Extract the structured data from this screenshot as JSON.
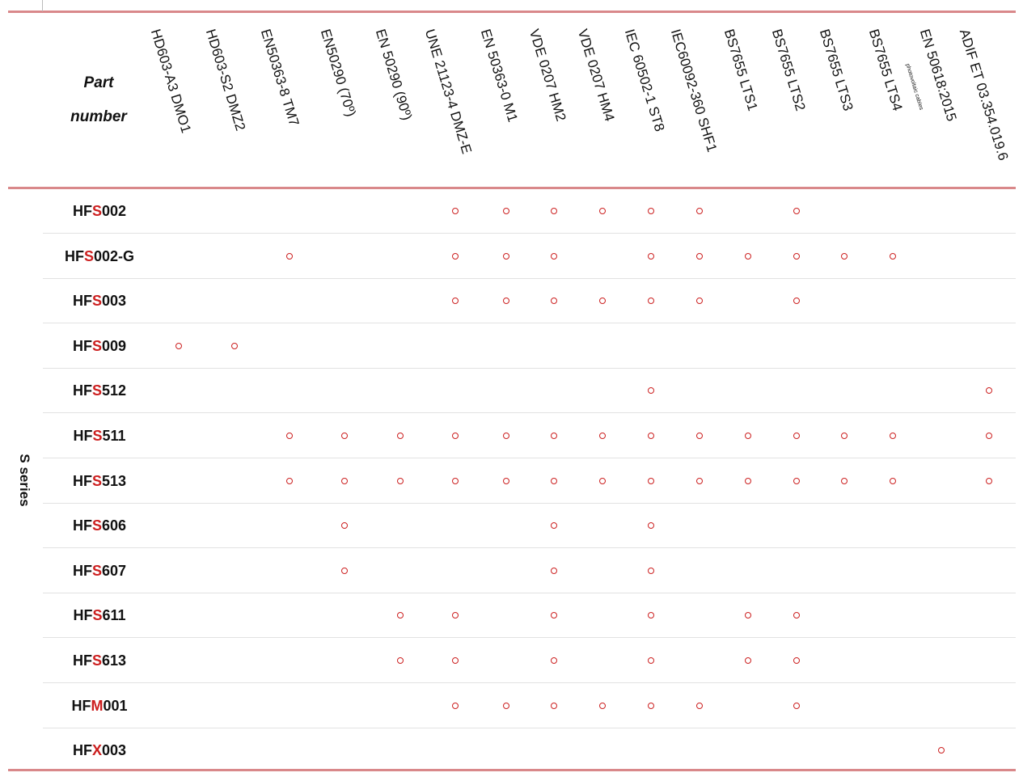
{
  "table": {
    "part_header": [
      "Part",
      "number"
    ],
    "series_label": "S series",
    "standards": [
      {
        "label": "HD603-A3 DMO1"
      },
      {
        "label": "HD603-S2 DMZ2"
      },
      {
        "label": "EN50363-8 TM7"
      },
      {
        "label": "EN50290 (70º)"
      },
      {
        "label": "EN 50290 (90º)"
      },
      {
        "label": "UNE 21123-4 DMZ-E"
      },
      {
        "label": "EN 50363-0 M1"
      },
      {
        "label": "VDE 0207 HM2"
      },
      {
        "label": "VDE 0207 HM4"
      },
      {
        "label": "IEC 60502-1 ST8"
      },
      {
        "label": "IEC60092-360 SHF1"
      },
      {
        "label": "BS7655 LTS1"
      },
      {
        "label": "BS7655 LTS2"
      },
      {
        "label": "BS7655 LTS3"
      },
      {
        "label": "BS7655 LTS4"
      },
      {
        "label": "EN 50618:2015",
        "sublabel": "photovoltaic cables"
      },
      {
        "label": "ADIF ET 03.354.019.6"
      }
    ],
    "rows": [
      {
        "prefix": "HF",
        "letter": "S",
        "suffix": "002",
        "marks": [
          5,
          6,
          7,
          8,
          9,
          10,
          12
        ]
      },
      {
        "prefix": "HF",
        "letter": "S",
        "suffix": "002-G",
        "marks": [
          2,
          5,
          6,
          7,
          9,
          10,
          11,
          12,
          13,
          14
        ]
      },
      {
        "prefix": "HF",
        "letter": "S",
        "suffix": "003",
        "marks": [
          5,
          6,
          7,
          8,
          9,
          10,
          12
        ]
      },
      {
        "prefix": "HF",
        "letter": "S",
        "suffix": "009",
        "marks": [
          0,
          1
        ]
      },
      {
        "prefix": "HF",
        "letter": "S",
        "suffix": "512",
        "marks": [
          9,
          16
        ]
      },
      {
        "prefix": "HF",
        "letter": "S",
        "suffix": "511",
        "marks": [
          2,
          3,
          4,
          5,
          6,
          7,
          8,
          9,
          10,
          11,
          12,
          13,
          14,
          16
        ]
      },
      {
        "prefix": "HF",
        "letter": "S",
        "suffix": "513",
        "marks": [
          2,
          3,
          4,
          5,
          6,
          7,
          8,
          9,
          10,
          11,
          12,
          13,
          14,
          16
        ]
      },
      {
        "prefix": "HF",
        "letter": "S",
        "suffix": "606",
        "marks": [
          3,
          7,
          9
        ]
      },
      {
        "prefix": "HF",
        "letter": "S",
        "suffix": "607",
        "marks": [
          3,
          7,
          9
        ]
      },
      {
        "prefix": "HF",
        "letter": "S",
        "suffix": "611",
        "marks": [
          4,
          5,
          7,
          9,
          11,
          12
        ]
      },
      {
        "prefix": "HF",
        "letter": "S",
        "suffix": "613",
        "marks": [
          4,
          5,
          7,
          9,
          11,
          12
        ]
      },
      {
        "prefix": "HF",
        "letter": "M",
        "suffix": "001",
        "marks": [
          5,
          6,
          7,
          8,
          9,
          10,
          12
        ]
      },
      {
        "prefix": "HF",
        "letter": "X",
        "suffix": "003",
        "marks": [
          15
        ]
      }
    ]
  },
  "colors": {
    "accent": "#cc2020",
    "rule": "#d9888a",
    "separator": "#e2e2e2"
  }
}
